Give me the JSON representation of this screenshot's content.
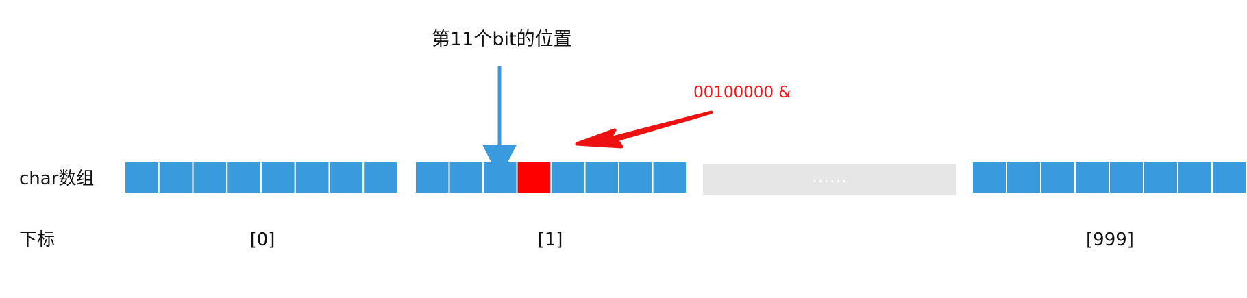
{
  "diagram": {
    "bit_label": "第11个bit的位置",
    "mask_label": "00100000 &",
    "char_array_label": "char数组",
    "index_row_label": "下标",
    "ellipsis": "......",
    "indices": [
      "[0]",
      "[1]",
      "[999]"
    ],
    "colors": {
      "cell": "#3a9ade",
      "highlight": "#ff0000",
      "pointer": "#3a9ade",
      "mask_arrow": "#ee1111",
      "ellipsis_bg": "#e7e6e7"
    },
    "groups": [
      {
        "name": "byte-0",
        "cells": 8,
        "highlight_bit": null
      },
      {
        "name": "byte-1",
        "cells": 8,
        "highlight_bit": 3
      },
      {
        "name": "byte-999",
        "cells": 8,
        "highlight_bit": null
      }
    ]
  }
}
